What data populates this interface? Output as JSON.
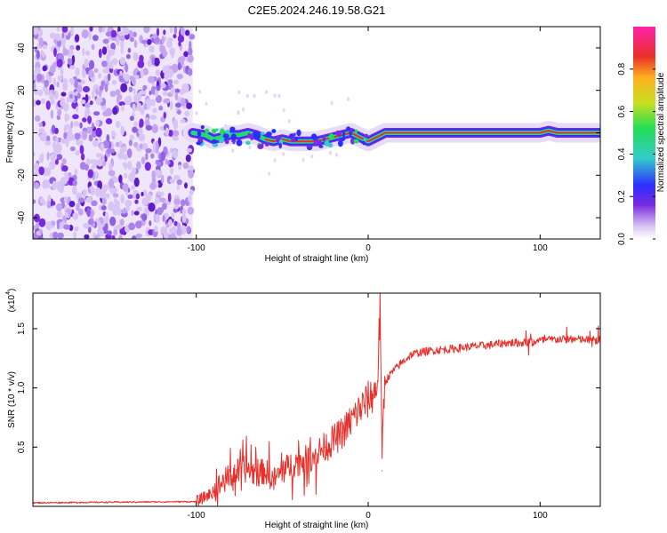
{
  "title": "C2E5.2024.246.19.58.G21",
  "colors": {
    "snr_line": "#e8302a",
    "ridge_red": "#e8302a",
    "ridge_green": "#22dd55",
    "ridge_cyan": "#33cccc",
    "ridge_blue": "#2d2dff",
    "noise_purple": "#7a2be0",
    "noise_light": "#d9c5f4"
  },
  "chart_data": [
    {
      "type": "heatmap",
      "name": "spectrogram",
      "xlabel": "Height of straight line (km)",
      "ylabel": "Frequency (Hz)",
      "xlim": [
        -195,
        135
      ],
      "ylim": [
        -50,
        50
      ],
      "xticks": [
        -100,
        0,
        100
      ],
      "xtick_labels": [
        "-100",
        "0",
        "100"
      ],
      "yticks": [
        -40,
        -20,
        0,
        20,
        40
      ],
      "ytick_labels": [
        "-40",
        "-20",
        "0",
        "20",
        "40"
      ],
      "noise_region_x": [
        -195,
        -102
      ],
      "ridge": {
        "x": [
          -102,
          -95,
          -90,
          -85,
          -80,
          -75,
          -70,
          -65,
          -60,
          -55,
          -50,
          -45,
          -40,
          -35,
          -30,
          -25,
          -20,
          -15,
          -10,
          -5,
          0,
          5,
          10,
          15,
          30,
          60,
          90,
          100,
          105,
          110,
          115,
          120,
          135
        ],
        "y": [
          0,
          -1,
          -3,
          -2,
          -1,
          -1,
          0,
          -1,
          -3,
          -4,
          -3,
          -4,
          -4,
          -4,
          -4,
          -3,
          -2,
          -1,
          0,
          -2,
          -4,
          -2,
          0,
          0,
          0,
          0,
          0,
          0,
          1,
          0,
          0,
          0,
          0
        ]
      },
      "colorbar": {
        "label": "Normalized spectral amplitude",
        "range": [
          0,
          1
        ],
        "ticks": [
          0.0,
          0.2,
          0.4,
          0.6,
          0.8
        ],
        "tick_labels": [
          "0.0",
          "0.2",
          "0.4",
          "0.6",
          "0.8"
        ]
      }
    },
    {
      "type": "line",
      "name": "snr",
      "xlabel": "Height of straight line (km)",
      "ylabel": "SNR (10 * v/v)",
      "y_multiplier_label": "(x10",
      "y_multiplier_exponent": "4",
      "y_multiplier_close": ")",
      "xlim": [
        -195,
        135
      ],
      "ylim": [
        0,
        1.8
      ],
      "xticks": [
        -100,
        0,
        100
      ],
      "xtick_labels": [
        "-100",
        "0",
        "100"
      ],
      "yticks": [
        0.5,
        1.0,
        1.5
      ],
      "ytick_labels": [
        "0.5",
        "1.0",
        "1.5"
      ],
      "series": [
        {
          "name": "SNR",
          "x": [
            -195,
            -150,
            -100,
            -95,
            -90,
            -85,
            -80,
            -75,
            -70,
            -65,
            -60,
            -55,
            -50,
            -45,
            -40,
            -35,
            -30,
            -25,
            -20,
            -15,
            -10,
            -5,
            0,
            3,
            5,
            6,
            7,
            8,
            9,
            10,
            12,
            15,
            20,
            25,
            30,
            40,
            50,
            60,
            70,
            80,
            90,
            100,
            110,
            120,
            135
          ],
          "y": [
            0.03,
            0.035,
            0.04,
            0.08,
            0.12,
            0.2,
            0.26,
            0.3,
            0.32,
            0.27,
            0.3,
            0.22,
            0.3,
            0.35,
            0.38,
            0.4,
            0.45,
            0.5,
            0.56,
            0.62,
            0.72,
            0.82,
            0.9,
            0.95,
            1.0,
            1.25,
            1.78,
            0.3,
            0.9,
            1.05,
            1.1,
            1.15,
            1.22,
            1.28,
            1.3,
            1.32,
            1.33,
            1.35,
            1.36,
            1.38,
            1.38,
            1.4,
            1.41,
            1.41,
            1.4
          ]
        }
      ]
    }
  ]
}
